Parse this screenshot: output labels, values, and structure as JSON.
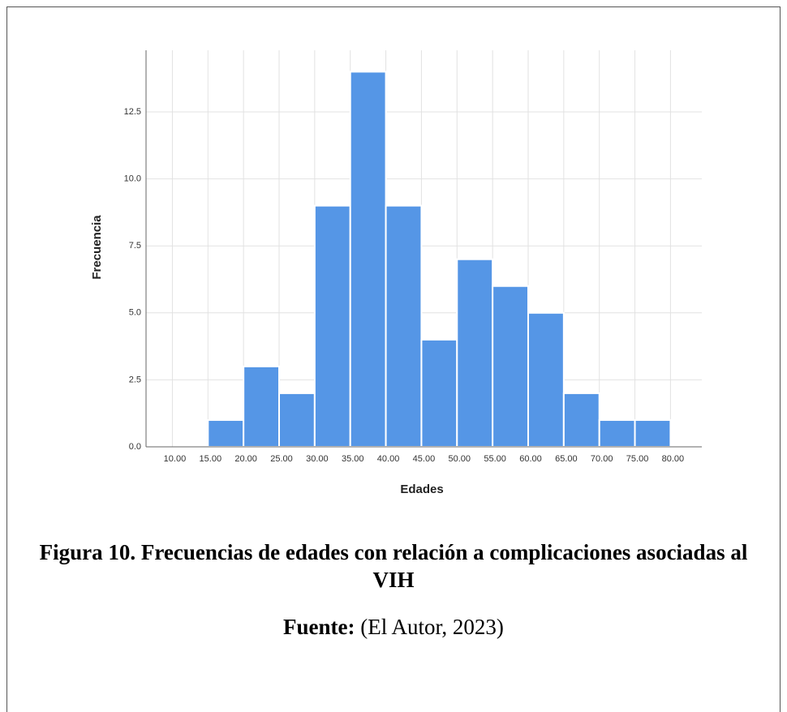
{
  "chart_data": {
    "type": "histogram",
    "x_label": "Edades",
    "y_label": "Frecuencia",
    "bins": [
      10,
      15,
      20,
      25,
      30,
      35,
      40,
      45,
      50,
      55,
      60,
      65,
      70,
      75,
      80
    ],
    "values": [
      0,
      1,
      3,
      2,
      9,
      14,
      9,
      4,
      7,
      6,
      5,
      2,
      1,
      1
    ],
    "color": "#5596e6",
    "xlim": [
      6.3,
      84.4
    ],
    "xticks": [
      {
        "value": 10,
        "label": "10.00"
      },
      {
        "value": 15,
        "label": "15.00"
      },
      {
        "value": 20,
        "label": "20.00"
      },
      {
        "value": 25,
        "label": "25.00"
      },
      {
        "value": 30,
        "label": "30.00"
      },
      {
        "value": 35,
        "label": "35.00"
      },
      {
        "value": 40,
        "label": "40.00"
      },
      {
        "value": 45,
        "label": "45.00"
      },
      {
        "value": 50,
        "label": "50.00"
      },
      {
        "value": 55,
        "label": "55.00"
      },
      {
        "value": 60,
        "label": "60.00"
      },
      {
        "value": 65,
        "label": "65.00"
      },
      {
        "value": 70,
        "label": "70.00"
      },
      {
        "value": 75,
        "label": "75.00"
      },
      {
        "value": 80,
        "label": "80.00"
      }
    ],
    "ylim": [
      0,
      14.8
    ],
    "yticks": [
      {
        "value": 0,
        "label": "0.0"
      },
      2.5,
      {
        "value": 5,
        "label": "5.0"
      },
      {
        "value": 7.5,
        "label": "7.5"
      },
      {
        "value": 10,
        "label": "10.0"
      },
      12.5
    ],
    "grid": true
  },
  "caption": {
    "figure": "Figura 10. Frecuencias de edades con relación a complicaciones asociadas al VIH",
    "source_label": "Fuente:",
    "source": "(El Autor, 2023)"
  }
}
